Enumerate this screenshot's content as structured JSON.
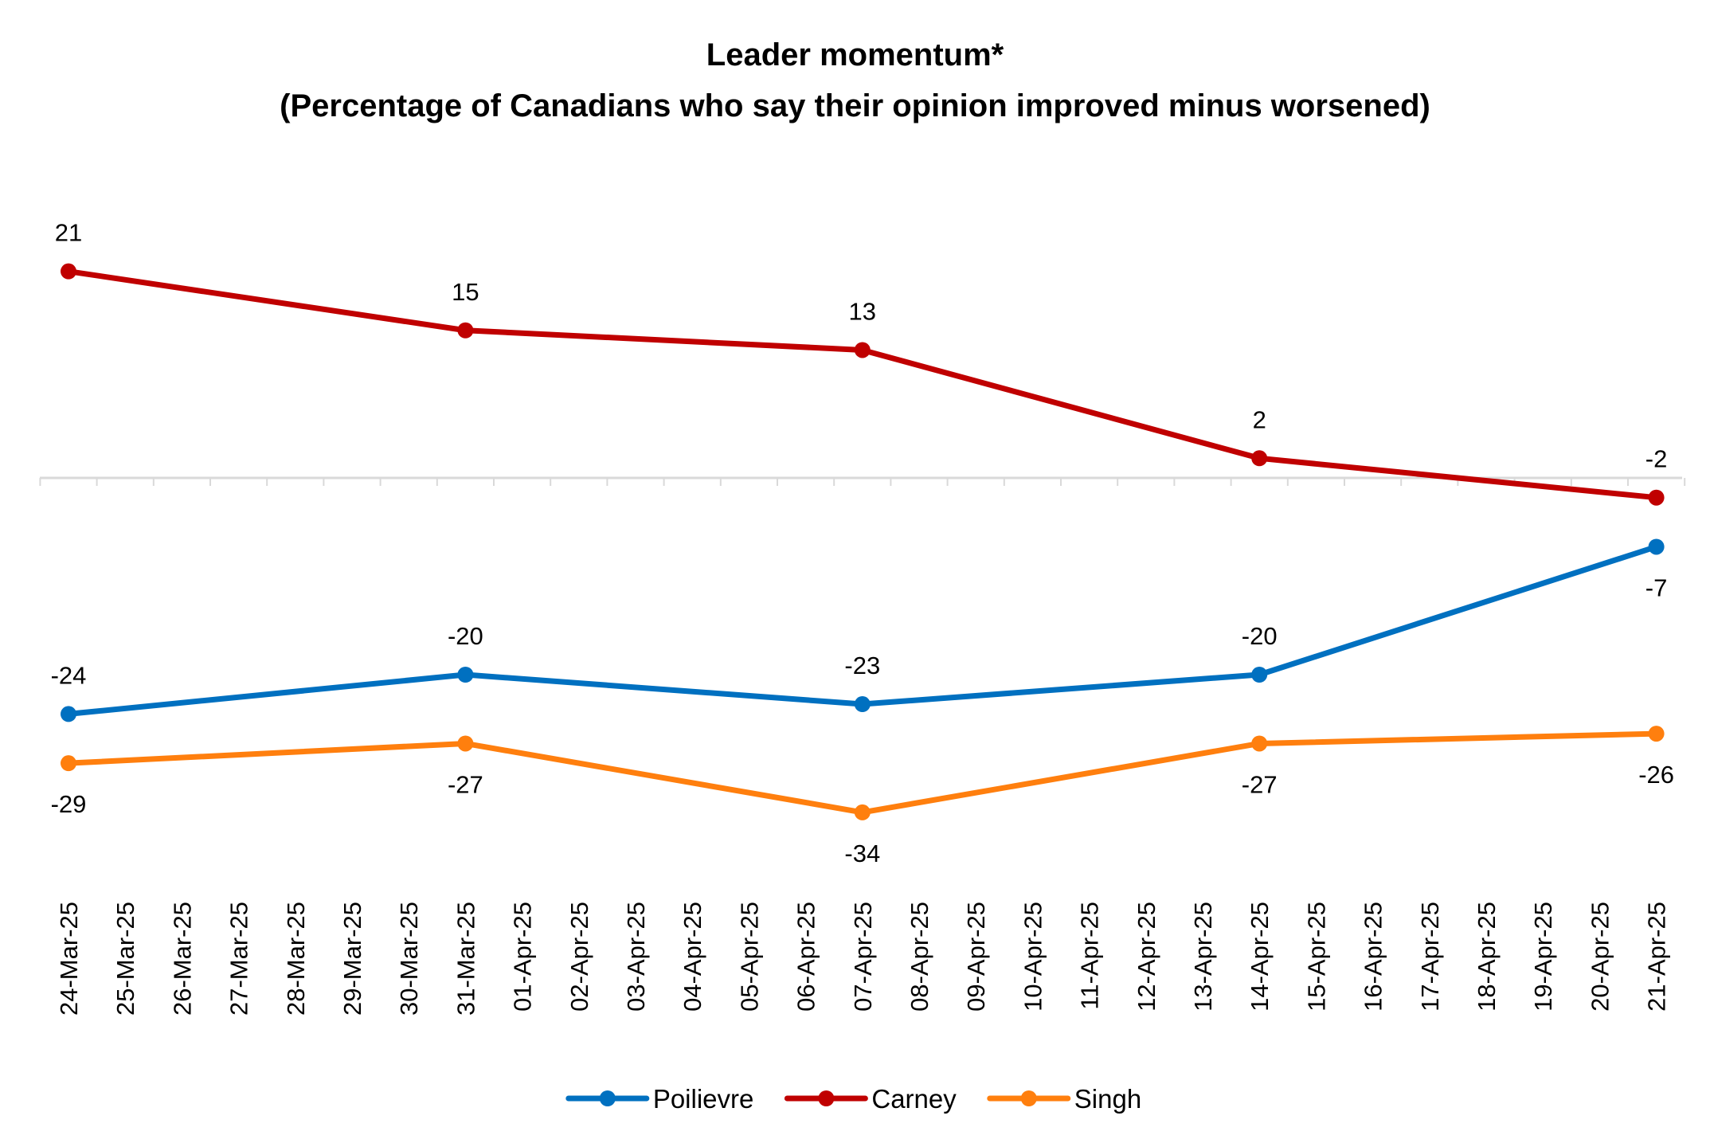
{
  "chart_data": {
    "type": "line",
    "title": "Leader momentum*",
    "subtitle": "(Percentage of Canadians who say their opinion improved minus worsened)",
    "xlabel": "",
    "ylabel": "",
    "x": [
      "24-Mar-25",
      "25-Mar-25",
      "26-Mar-25",
      "27-Mar-25",
      "28-Mar-25",
      "29-Mar-25",
      "30-Mar-25",
      "31-Mar-25",
      "01-Apr-25",
      "02-Apr-25",
      "03-Apr-25",
      "04-Apr-25",
      "05-Apr-25",
      "06-Apr-25",
      "07-Apr-25",
      "08-Apr-25",
      "09-Apr-25",
      "10-Apr-25",
      "11-Apr-25",
      "12-Apr-25",
      "13-Apr-25",
      "14-Apr-25",
      "15-Apr-25",
      "16-Apr-25",
      "17-Apr-25",
      "18-Apr-25",
      "19-Apr-25",
      "20-Apr-25",
      "21-Apr-25"
    ],
    "ylim": [
      -40,
      25
    ],
    "grid": false,
    "legend_position": "bottom",
    "series": [
      {
        "name": "Poilievre",
        "color": "#0070C0",
        "points": [
          {
            "x": "24-Mar-25",
            "y": -24
          },
          {
            "x": "31-Mar-25",
            "y": -20
          },
          {
            "x": "07-Apr-25",
            "y": -23
          },
          {
            "x": "14-Apr-25",
            "y": -20
          },
          {
            "x": "21-Apr-25",
            "y": -7
          }
        ],
        "label_side": [
          "above",
          "above",
          "above",
          "above",
          "below"
        ]
      },
      {
        "name": "Carney",
        "color": "#C00000",
        "points": [
          {
            "x": "24-Mar-25",
            "y": 21
          },
          {
            "x": "31-Mar-25",
            "y": 15
          },
          {
            "x": "07-Apr-25",
            "y": 13
          },
          {
            "x": "14-Apr-25",
            "y": 2
          },
          {
            "x": "21-Apr-25",
            "y": -2
          }
        ],
        "label_side": [
          "above",
          "above",
          "above",
          "above",
          "above"
        ]
      },
      {
        "name": "Singh",
        "color": "#FF7F0E",
        "points": [
          {
            "x": "24-Mar-25",
            "y": -29
          },
          {
            "x": "31-Mar-25",
            "y": -27
          },
          {
            "x": "07-Apr-25",
            "y": -34
          },
          {
            "x": "14-Apr-25",
            "y": -27
          },
          {
            "x": "21-Apr-25",
            "y": -26
          }
        ],
        "label_side": [
          "below",
          "below",
          "below",
          "below",
          "below"
        ]
      }
    ]
  },
  "colors": {
    "axis": "#D9D9D9",
    "text": "#000000",
    "background": "#FFFFFF"
  }
}
